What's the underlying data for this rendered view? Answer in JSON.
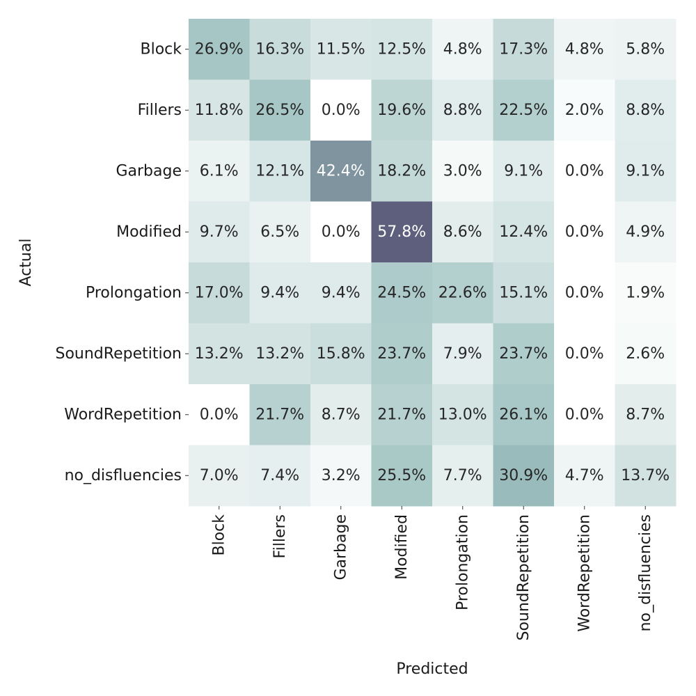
{
  "chart_data": {
    "type": "heatmap",
    "title": "",
    "xlabel": "Predicted",
    "ylabel": "Actual",
    "x_categories": [
      "Block",
      "Fillers",
      "Garbage",
      "Modified",
      "Prolongation",
      "SoundRepetition",
      "WordRepetition",
      "no_disfluencies"
    ],
    "y_categories": [
      "Block",
      "Fillers",
      "Garbage",
      "Modified",
      "Prolongation",
      "SoundRepetition",
      "WordRepetition",
      "no_disfluencies"
    ],
    "values": [
      [
        26.9,
        16.3,
        11.5,
        12.5,
        4.8,
        17.3,
        4.8,
        5.8
      ],
      [
        11.8,
        26.5,
        0.0,
        19.6,
        8.8,
        22.5,
        2.0,
        8.8
      ],
      [
        6.1,
        12.1,
        42.4,
        18.2,
        3.0,
        9.1,
        0.0,
        9.1
      ],
      [
        9.7,
        6.5,
        0.0,
        57.8,
        8.6,
        12.4,
        0.0,
        4.9
      ],
      [
        17.0,
        9.4,
        9.4,
        24.5,
        22.6,
        15.1,
        0.0,
        1.9
      ],
      [
        13.2,
        13.2,
        15.8,
        23.7,
        7.9,
        23.7,
        0.0,
        2.6
      ],
      [
        0.0,
        21.7,
        8.7,
        21.7,
        13.0,
        26.1,
        0.0,
        8.7
      ],
      [
        7.0,
        7.4,
        3.2,
        25.5,
        7.7,
        30.9,
        4.7,
        13.7
      ]
    ],
    "value_format": "percent_one_decimal",
    "colormap": {
      "low": "#ffffff",
      "mid": "#9ec2c0",
      "high": "#5e5f7c",
      "vmin": 0,
      "vmax": 57.8
    },
    "text_color_dark": "#262626",
    "text_color_light": "#ffffff",
    "colorbar": false,
    "grid": false
  }
}
